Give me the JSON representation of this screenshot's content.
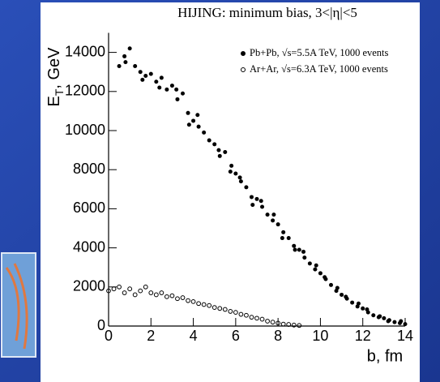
{
  "chart_data": {
    "type": "scatter",
    "title": "HIJING: minimum bias, 3<|η|<5",
    "xlabel": "b, fm",
    "ylabel": "E",
    "ylabel_sub": "T",
    "ylabel_rest": ", GeV",
    "xlim": [
      0,
      14
    ],
    "ylim": [
      0,
      15000
    ],
    "xticks": [
      0,
      2,
      4,
      6,
      8,
      10,
      12,
      14
    ],
    "yticks": [
      0,
      2000,
      4000,
      6000,
      8000,
      10000,
      12000,
      14000
    ],
    "legend": "upper right",
    "series": [
      {
        "name": "Pb+Pb, √s=5.5A TeV, 1000 events",
        "color": "#000000",
        "marker": "filled",
        "x": [
          0.5,
          0.75,
          1.0,
          1.25,
          1.5,
          1.75,
          2.0,
          2.25,
          2.5,
          2.75,
          3.0,
          3.25,
          3.5,
          3.75,
          4.0,
          4.25,
          4.5,
          4.75,
          5.0,
          5.25,
          5.5,
          5.75,
          6.0,
          6.25,
          6.5,
          6.75,
          7.0,
          7.25,
          7.5,
          7.75,
          8.0,
          8.25,
          8.5,
          8.75,
          9.0,
          9.25,
          9.5,
          9.75,
          10.0,
          10.25,
          10.5,
          10.75,
          11.0,
          11.25,
          11.5,
          11.75,
          12.0,
          12.25,
          12.5,
          12.75,
          13.0,
          13.25,
          13.5,
          13.75,
          14.0,
          0.8,
          1.6,
          2.4,
          3.2,
          4.2,
          5.2,
          6.2,
          7.2,
          8.2,
          9.2,
          10.2,
          11.2,
          12.2,
          13.2,
          3.8,
          5.8,
          6.8,
          7.8,
          8.8,
          9.8,
          10.8,
          11.8,
          12.8,
          13.8
        ],
        "values": [
          13300,
          13800,
          14200,
          13300,
          13000,
          12800,
          12900,
          12500,
          12700,
          12100,
          12300,
          11600,
          11900,
          10900,
          10500,
          10200,
          9900,
          9500,
          9300,
          8700,
          8900,
          7900,
          7800,
          7400,
          7100,
          6600,
          6500,
          6100,
          5700,
          5400,
          5200,
          4800,
          4500,
          4100,
          3900,
          3500,
          3200,
          2900,
          2700,
          2400,
          2100,
          1800,
          1600,
          1400,
          1200,
          1000,
          900,
          700,
          550,
          450,
          400,
          300,
          200,
          150,
          100,
          13500,
          12600,
          12200,
          12100,
          10800,
          9000,
          7600,
          6400,
          4500,
          3800,
          2500,
          1500,
          850,
          250,
          10300,
          8200,
          6200,
          5700,
          3900,
          3100,
          1950,
          1150,
          500,
          250
        ]
      },
      {
        "name": "Ar+Ar, √s=6.3A TeV, 1000 events",
        "color": "#000000",
        "marker": "open",
        "x": [
          0,
          0.25,
          0.5,
          0.75,
          1.0,
          1.25,
          1.5,
          1.75,
          2.0,
          2.25,
          2.5,
          2.75,
          3.0,
          3.25,
          3.5,
          3.75,
          4.0,
          4.25,
          4.5,
          4.75,
          5.0,
          5.25,
          5.5,
          5.75,
          6.0,
          6.25,
          6.5,
          6.75,
          7.0,
          7.25,
          7.5,
          7.75,
          8.0,
          8.25,
          8.5,
          8.75,
          9.0
        ],
        "values": [
          1800,
          1900,
          2000,
          1700,
          1900,
          1600,
          1800,
          2000,
          1700,
          1600,
          1700,
          1500,
          1550,
          1400,
          1450,
          1300,
          1250,
          1150,
          1100,
          1050,
          950,
          900,
          850,
          750,
          700,
          600,
          550,
          450,
          400,
          350,
          250,
          200,
          150,
          100,
          80,
          50,
          30
        ]
      }
    ]
  }
}
